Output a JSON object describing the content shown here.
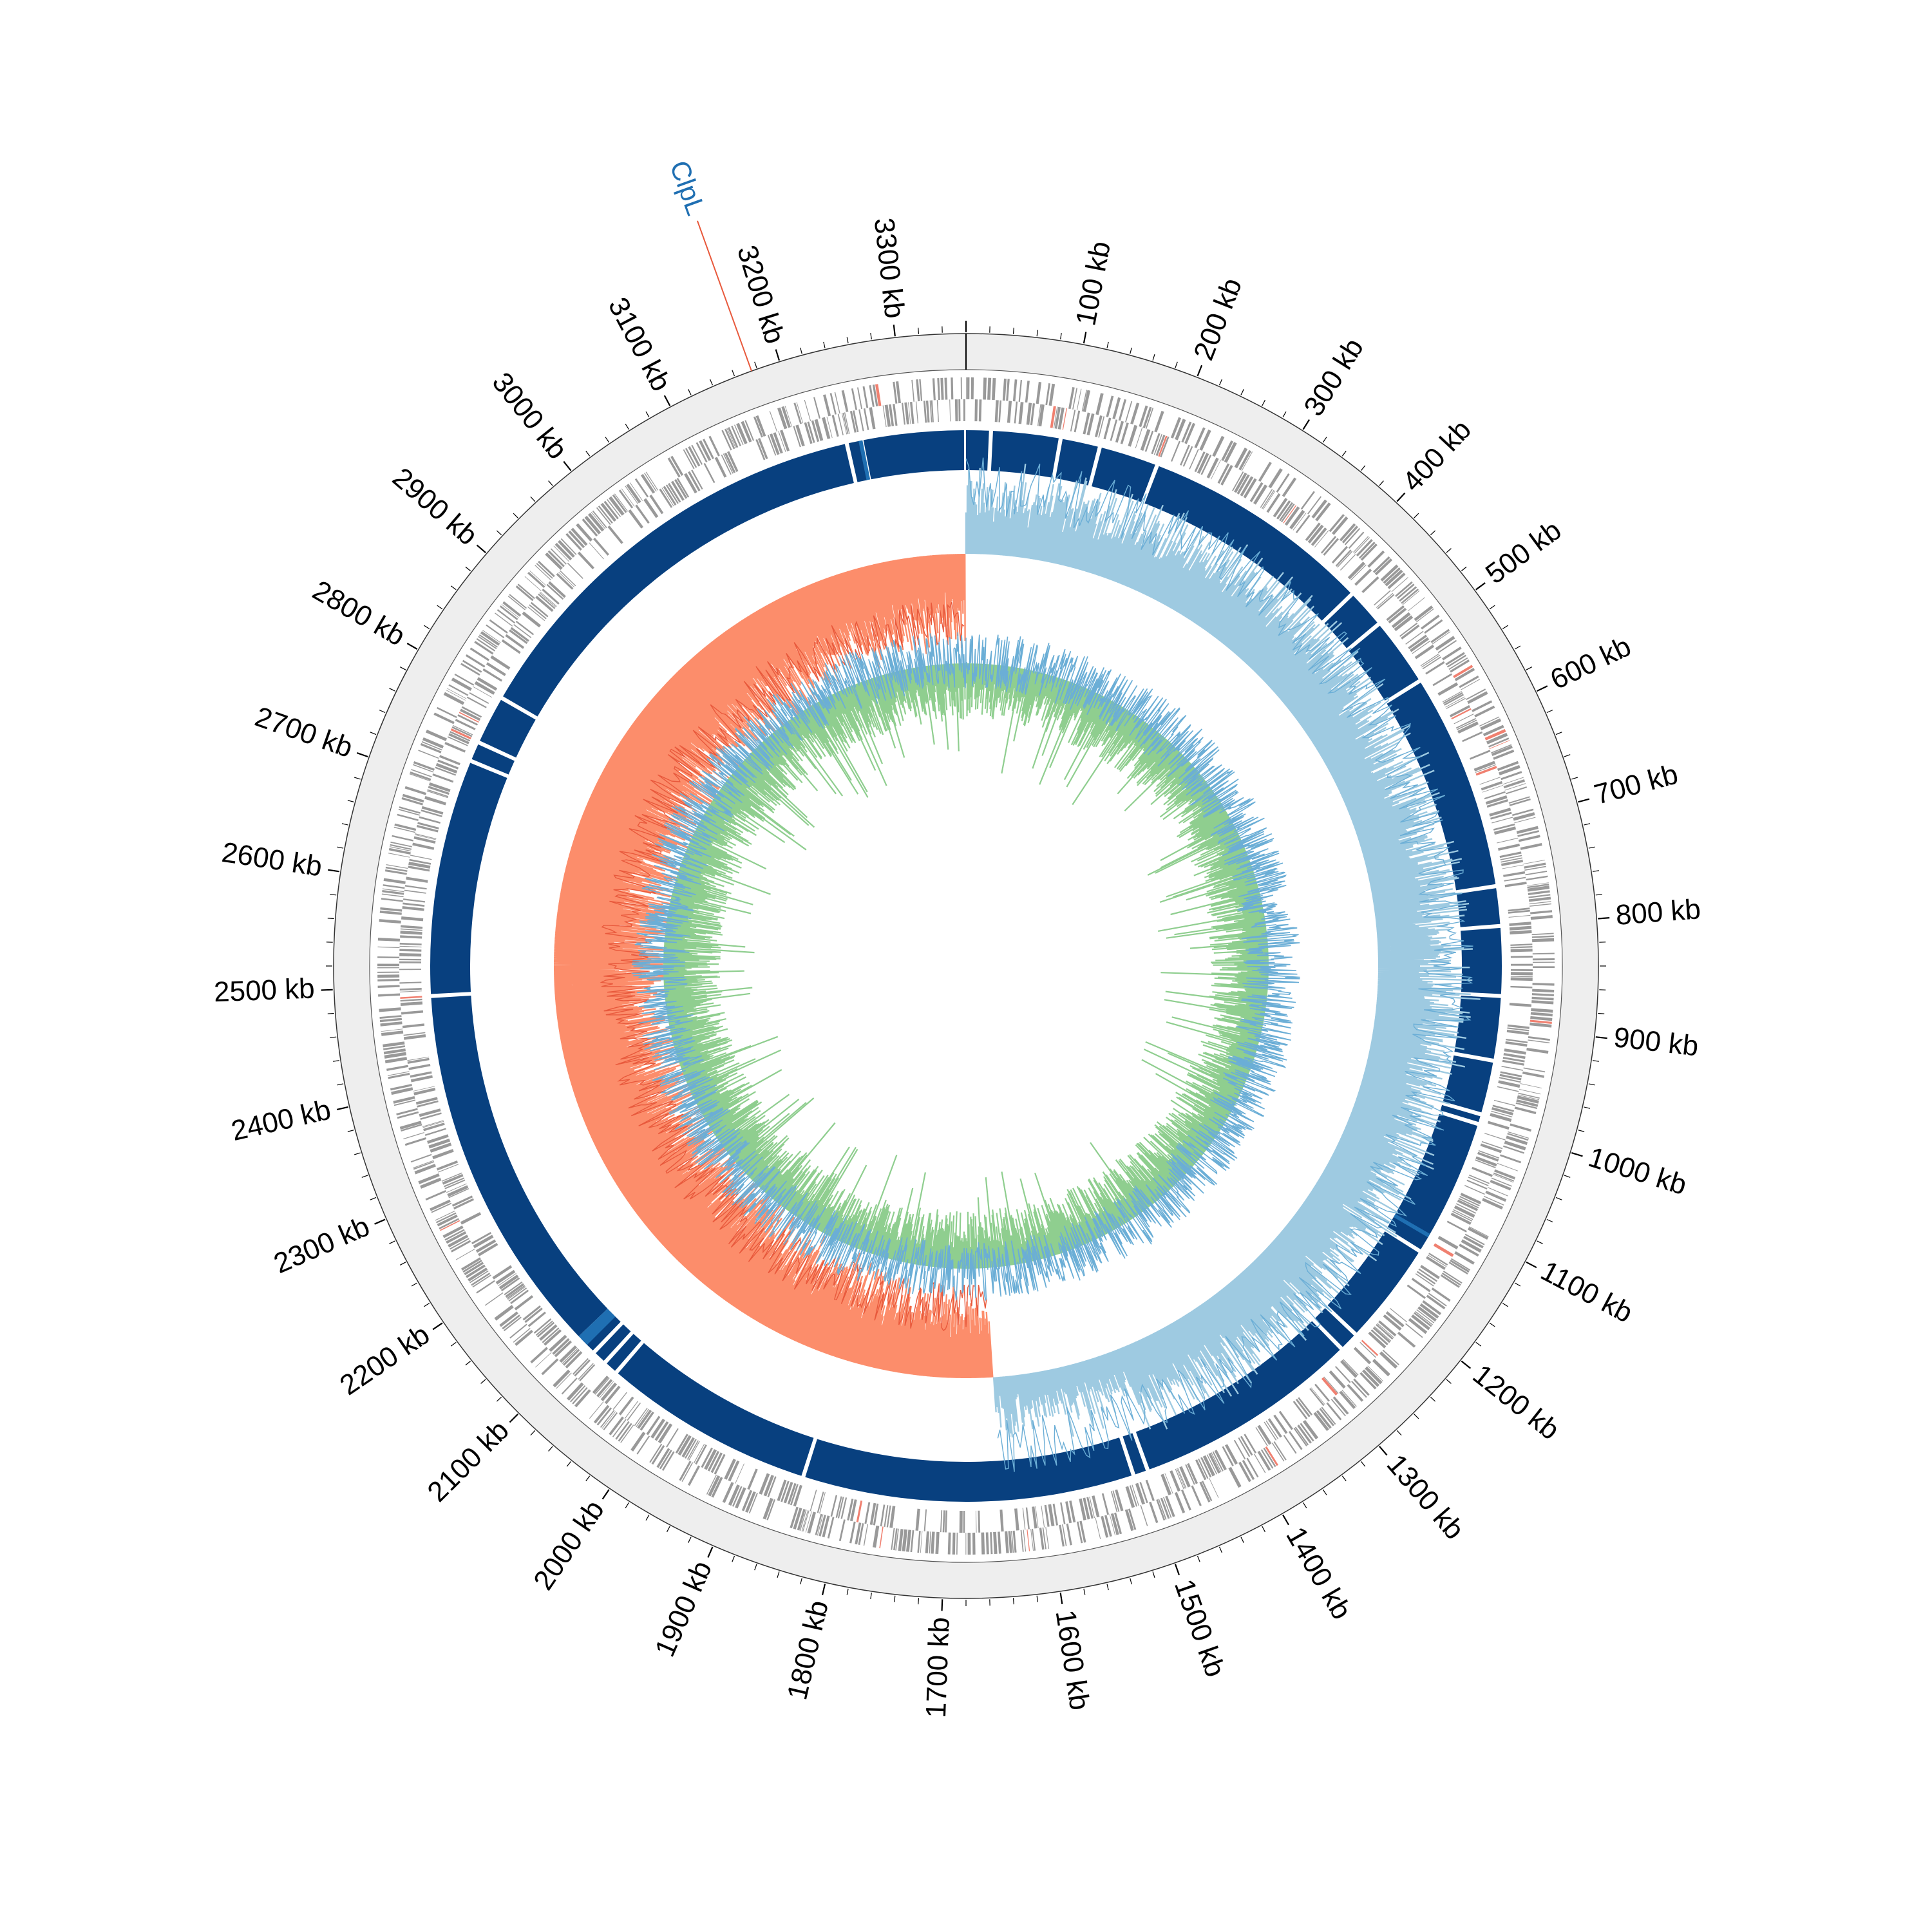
{
  "figure": {
    "genome_length_kb": 3360,
    "axis_unit": "kb",
    "tick_labels": [
      "3300 kb",
      "100 kb",
      "200 kb",
      "300 kb",
      "400 kb",
      "500 kb",
      "600 kb",
      "700 kb",
      "800 kb",
      "900 kb",
      "1000 kb",
      "1100 kb",
      "1200 kb",
      "1300 kb",
      "1400 kb",
      "1500 kb",
      "1600 kb",
      "1700 kb",
      "1800 kb",
      "1900 kb",
      "2000 kb",
      "2100 kb",
      "2200 kb",
      "2300 kb",
      "2400 kb",
      "2500 kb",
      "2600 kb",
      "2700 kb",
      "2800 kb",
      "2900 kb",
      "3000 kb",
      "3100 kb",
      "3200 kb"
    ],
    "tick_values_kb": [
      3300,
      100,
      200,
      300,
      400,
      500,
      600,
      700,
      800,
      900,
      1000,
      1100,
      1200,
      1300,
      1400,
      1500,
      1600,
      1700,
      1800,
      1900,
      2000,
      2100,
      2200,
      2300,
      2400,
      2500,
      2600,
      2700,
      2800,
      2900,
      3000,
      3100,
      3200
    ],
    "gene_markers": [
      {
        "label": "ClpL",
        "position_kb": 3175,
        "label_color": "#1f6fb2",
        "line_color": "#e8593c"
      }
    ],
    "tracks": {
      "cds_track_color": "#999999",
      "highlight_color": "#f08070",
      "contig_color": "#08407f",
      "contig_accent_color": "#1f6fb2",
      "gc_skew_positive_color": "#9ecae1",
      "gc_skew_negative_color": "#fc8d6b",
      "gc_content_color": "#6baed6",
      "inner_fill_color": "#8fce8f",
      "background_ring_color": "#eeeeee"
    },
    "contig_gaps_kb": [
      25,
      95,
      135,
      195,
      430,
      470,
      540,
      760,
      800,
      870,
      935,
      990,
      1000,
      1140,
      1245,
      1265,
      1495,
      1510,
      1845,
      2060,
      2075,
      2090,
      2110,
      2490,
      2730,
      2750,
      2800,
      3240,
      3255
    ]
  }
}
